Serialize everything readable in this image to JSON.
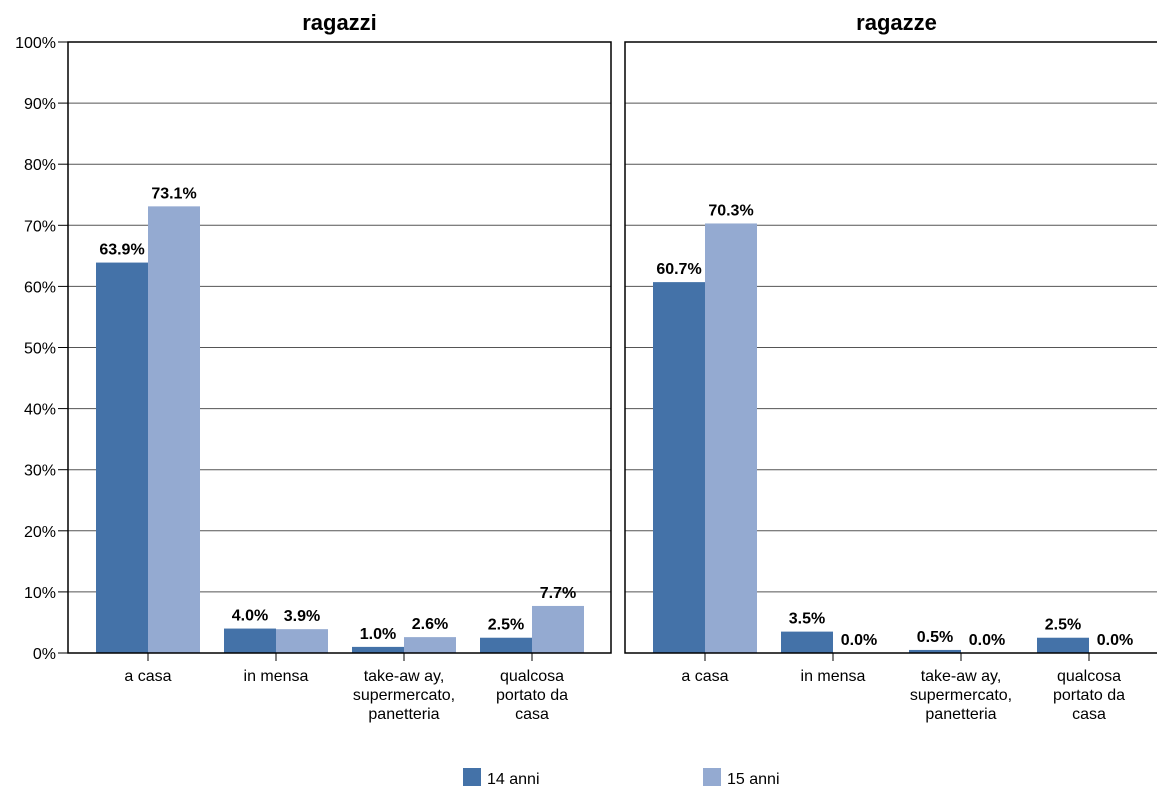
{
  "chart_data": {
    "type": "bar",
    "y_ticks": [
      "0%",
      "10%",
      "20%",
      "30%",
      "40%",
      "50%",
      "60%",
      "70%",
      "80%",
      "90%",
      "100%"
    ],
    "ylim": [
      0,
      100
    ],
    "grid": true,
    "legend_position": "bottom",
    "series_colors": [
      "#4472a8",
      "#94aad1"
    ],
    "series": [
      {
        "name": "14 anni",
        "color": "#4472a8"
      },
      {
        "name": "15 anni",
        "color": "#94aad1"
      }
    ],
    "panels": [
      {
        "title": "ragazzi",
        "categories": [
          [
            "a casa"
          ],
          [
            "in mensa"
          ],
          [
            "take-aw ay,",
            "supermercato,",
            "panetteria"
          ],
          [
            "qualcosa",
            "portato da",
            "casa"
          ]
        ],
        "values": [
          [
            63.9,
            4.0,
            1.0,
            2.5
          ],
          [
            73.1,
            3.9,
            2.6,
            7.7
          ]
        ],
        "labels": [
          [
            "63.9%",
            "4.0%",
            "1.0%",
            "2.5%"
          ],
          [
            "73.1%",
            "3.9%",
            "2.6%",
            "7.7%"
          ]
        ]
      },
      {
        "title": "ragazze",
        "categories": [
          [
            "a casa"
          ],
          [
            "in mensa"
          ],
          [
            "take-aw ay,",
            "supermercato,",
            "panetteria"
          ],
          [
            "qualcosa",
            "portato da",
            "casa"
          ]
        ],
        "values": [
          [
            60.7,
            3.5,
            0.5,
            2.5
          ],
          [
            70.3,
            0.0,
            0.0,
            0.0
          ]
        ],
        "labels": [
          [
            "60.7%",
            "3.5%",
            "0.5%",
            "2.5%"
          ],
          [
            "70.3%",
            "0.0%",
            "0.0%",
            "0.0%"
          ]
        ]
      }
    ]
  }
}
